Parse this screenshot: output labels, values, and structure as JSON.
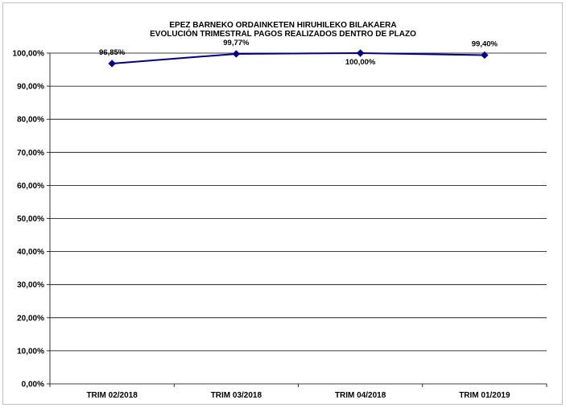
{
  "chart_data": {
    "type": "line",
    "title": "EPEZ BARNEKO ORDAINKETEN HIRUHILEKO BILAKAERA",
    "subtitle": "EVOLUCIÓN TRIMESTRAL PAGOS REALIZADOS DENTRO DE PLAZO",
    "categories": [
      "TRIM 02/2018",
      "TRIM 03/2018",
      "TRIM 04/2018",
      "TRIM 01/2019"
    ],
    "series": [
      {
        "values": [
          96.85,
          99.77,
          100.0,
          99.4
        ],
        "data_labels": [
          "96,85%",
          "99,77%",
          "100,00%",
          "99,40%"
        ],
        "color": "#000080"
      }
    ],
    "ylim": [
      0,
      100
    ],
    "yticks": [
      0,
      10,
      20,
      30,
      40,
      50,
      60,
      70,
      80,
      90,
      100
    ],
    "ytick_labels": [
      "0,00%",
      "10,00%",
      "20,00%",
      "30,00%",
      "40,00%",
      "50,00%",
      "60,00%",
      "70,00%",
      "80,00%",
      "90,00%",
      "100,00%"
    ],
    "grid": true,
    "legend": "none",
    "xlabel": "",
    "ylabel": ""
  }
}
